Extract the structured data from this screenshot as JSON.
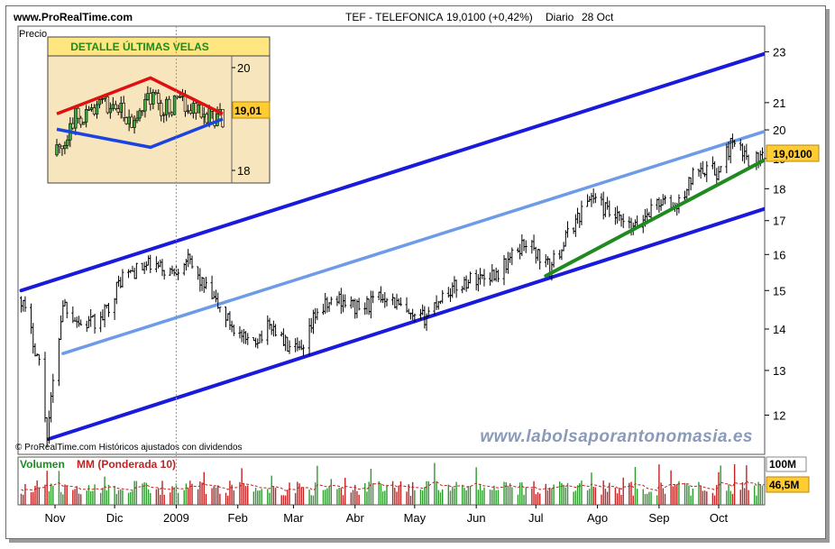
{
  "header": {
    "site": "www.ProRealTime.com",
    "instrument": "TEF - TELEFONICA",
    "quote": "19,0100 (+0,42%)",
    "period": "Diario",
    "date": "28 Oct"
  },
  "price_panel": {
    "label": "Precio",
    "last_price_badge": "19,0100",
    "copyright": "© ProRealTime.com Históricos ajustados con dividendos",
    "watermark": "www.labolsaporantonomasia.es"
  },
  "inset": {
    "title": "DETALLE ÚLTIMAS VELAS",
    "price_badge": "19,01"
  },
  "volume_panel": {
    "label_volume": "Volumen",
    "label_ma": "MM (Ponderada 10)",
    "badge_max": "100M",
    "badge_last": "46,5M"
  },
  "colors": {
    "channel": "#1a1adb",
    "midline": "#6e9be8",
    "support": "#1f8a1f",
    "inset_resistance": "#e01010",
    "inset_support": "#1a44dd",
    "badge": "#ffcc33",
    "inset_bg": "#f7e6bd",
    "watermark": "#8a9ab8",
    "vol_up": "#2e9a2e",
    "vol_down": "#c42020"
  },
  "chart_data": [
    {
      "type": "candlestick",
      "title": "TEF - TELEFONICA",
      "ylabel": "Precio",
      "y_ticks": [
        12,
        13,
        14,
        15,
        16,
        17,
        18,
        19,
        20,
        21,
        23
      ],
      "ylim": [
        11.3,
        23.4
      ],
      "x_ticks": [
        "Nov",
        "Dic",
        "2009",
        "Feb",
        "Mar",
        "Abr",
        "May",
        "Jun",
        "Jul",
        "Ago",
        "Sep",
        "Oct"
      ],
      "last_value": 19.01,
      "close_path": [
        {
          "d": "2008-10-15",
          "c": 14.8
        },
        {
          "d": "2008-10-24",
          "c": 13.2
        },
        {
          "d": "2008-10-28",
          "c": 11.6
        },
        {
          "d": "2008-11-05",
          "c": 14.7
        },
        {
          "d": "2008-11-14",
          "c": 14.1
        },
        {
          "d": "2008-11-24",
          "c": 14.2
        },
        {
          "d": "2008-12-05",
          "c": 15.4
        },
        {
          "d": "2008-12-19",
          "c": 15.7
        },
        {
          "d": "2008-12-30",
          "c": 15.5
        },
        {
          "d": "2009-01-06",
          "c": 15.9
        },
        {
          "d": "2009-01-15",
          "c": 15.1
        },
        {
          "d": "2009-01-26",
          "c": 14.3
        },
        {
          "d": "2009-02-06",
          "c": 13.6
        },
        {
          "d": "2009-02-18",
          "c": 14.1
        },
        {
          "d": "2009-02-27",
          "c": 13.5
        },
        {
          "d": "2009-03-06",
          "c": 13.4
        },
        {
          "d": "2009-03-12",
          "c": 14.4
        },
        {
          "d": "2009-03-24",
          "c": 14.8
        },
        {
          "d": "2009-04-03",
          "c": 14.5
        },
        {
          "d": "2009-04-17",
          "c": 14.9
        },
        {
          "d": "2009-04-30",
          "c": 14.2
        },
        {
          "d": "2009-05-06",
          "c": 14.3
        },
        {
          "d": "2009-05-15",
          "c": 14.9
        },
        {
          "d": "2009-05-29",
          "c": 15.3
        },
        {
          "d": "2009-06-12",
          "c": 15.5
        },
        {
          "d": "2009-06-26",
          "c": 16.4
        },
        {
          "d": "2009-07-08",
          "c": 15.6
        },
        {
          "d": "2009-07-20",
          "c": 16.9
        },
        {
          "d": "2009-07-29",
          "c": 17.8
        },
        {
          "d": "2009-08-07",
          "c": 17.2
        },
        {
          "d": "2009-08-19",
          "c": 16.7
        },
        {
          "d": "2009-08-31",
          "c": 17.6
        },
        {
          "d": "2009-09-10",
          "c": 17.4
        },
        {
          "d": "2009-09-21",
          "c": 18.8
        },
        {
          "d": "2009-10-01",
          "c": 18.5
        },
        {
          "d": "2009-10-07",
          "c": 19.5
        },
        {
          "d": "2009-10-16",
          "c": 19.0
        },
        {
          "d": "2009-10-28",
          "c": 19.01
        }
      ],
      "trendlines": [
        {
          "name": "canal-superior",
          "from": {
            "d": "2008-10-15",
            "v": 15.0
          },
          "to": {
            "d": "2009-10-31",
            "v": 23.1
          }
        },
        {
          "name": "canal-inferior",
          "from": {
            "d": "2008-10-29",
            "v": 11.5
          },
          "to": {
            "d": "2009-10-31",
            "v": 17.5
          }
        },
        {
          "name": "linea-media",
          "from": {
            "d": "2008-11-05",
            "v": 13.4
          },
          "to": {
            "d": "2009-10-31",
            "v": 20.1
          }
        },
        {
          "name": "soporte-corto",
          "from": {
            "d": "2009-07-06",
            "v": 15.4
          },
          "to": {
            "d": "2009-10-31",
            "v": 19.2
          }
        }
      ]
    },
    {
      "type": "candlestick",
      "title": "DETALLE ÚLTIMAS VELAS",
      "y_ticks": [
        18,
        19.01,
        20
      ],
      "ylim": [
        17.7,
        20.25
      ],
      "close_path": [
        {
          "i": 0,
          "c": 18.3
        },
        {
          "i": 6,
          "c": 19.0
        },
        {
          "i": 14,
          "c": 19.2
        },
        {
          "i": 22,
          "c": 19.3
        },
        {
          "i": 28,
          "c": 18.8
        },
        {
          "i": 34,
          "c": 19.5
        },
        {
          "i": 40,
          "c": 19.2
        },
        {
          "i": 48,
          "c": 19.3
        },
        {
          "i": 56,
          "c": 19.1
        },
        {
          "i": 62,
          "c": 19.0
        }
      ],
      "trendlines": [
        {
          "name": "resistencia",
          "points": [
            [
              0,
              19.1
            ],
            [
              35,
              19.8
            ],
            [
              62,
              19.1
            ]
          ],
          "color": "#e01010"
        },
        {
          "name": "soporte",
          "points": [
            [
              0,
              18.8
            ],
            [
              35,
              18.45
            ],
            [
              62,
              19.0
            ]
          ],
          "color": "#1a44dd"
        }
      ]
    },
    {
      "type": "bar",
      "title": "Volumen",
      "series": [
        {
          "name": "MM (Ponderada 10)"
        }
      ],
      "y_ticks_labels": [
        "100M",
        "46,5M"
      ],
      "max": 100,
      "last": 46.5,
      "unit": "M"
    }
  ]
}
